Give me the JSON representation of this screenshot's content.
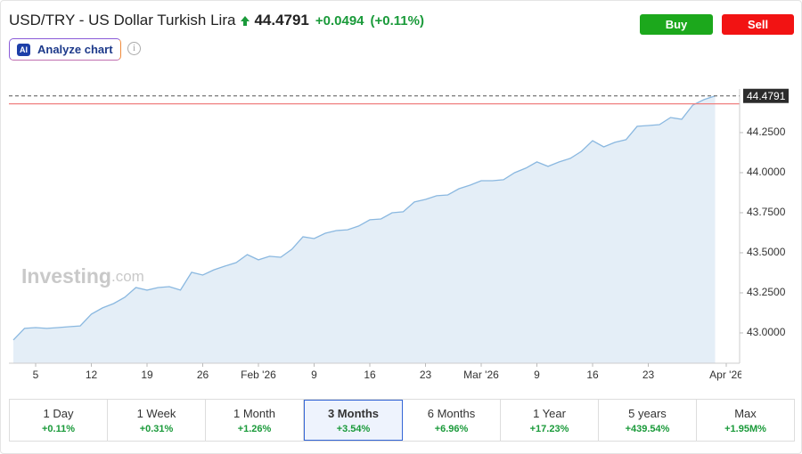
{
  "header": {
    "title": "USD/TRY - US Dollar Turkish Lira",
    "price": "44.4791",
    "change": "+0.0494",
    "change_percent": "(+0.11%)"
  },
  "buttons": {
    "buy": "Buy",
    "sell": "Sell"
  },
  "analyze": {
    "icon": "AI",
    "label": "Analyze chart",
    "info": "i"
  },
  "watermark": {
    "brand": "Investing",
    "suffix": ".com"
  },
  "chart_data": {
    "type": "area",
    "values": [
      42.956,
      43.028,
      43.033,
      43.028,
      43.033,
      43.039,
      43.044,
      43.117,
      43.156,
      43.183,
      43.222,
      43.283,
      43.267,
      43.283,
      43.289,
      43.267,
      43.378,
      43.361,
      43.394,
      43.417,
      43.439,
      43.489,
      43.456,
      43.478,
      43.472,
      43.522,
      43.6,
      43.589,
      43.622,
      43.639,
      43.644,
      43.667,
      43.706,
      43.711,
      43.75,
      43.756,
      43.817,
      43.833,
      43.856,
      43.861,
      43.9,
      43.922,
      43.95,
      43.95,
      43.956,
      44.0,
      44.028,
      44.067,
      44.039,
      44.067,
      44.089,
      44.133,
      44.2,
      44.161,
      44.189,
      44.206,
      44.289,
      44.294,
      44.3,
      44.344,
      44.333,
      44.422,
      44.456,
      44.4791
    ],
    "color": "#8ab8e0",
    "fill": "#e4eef7",
    "reference_line": 44.4297,
    "reference_color": "#f08080",
    "xlim": [
      -0.4,
      65.2
    ],
    "xticks": [
      {
        "value": 2,
        "label": "5"
      },
      {
        "value": 7,
        "label": "12"
      },
      {
        "value": 12,
        "label": "19"
      },
      {
        "value": 17,
        "label": "26"
      },
      {
        "value": 22,
        "label": "Feb '26"
      },
      {
        "value": 27,
        "label": "9"
      },
      {
        "value": 32,
        "label": "16"
      },
      {
        "value": 37,
        "label": "23"
      },
      {
        "value": 42,
        "label": "Mar '26"
      },
      {
        "value": 47,
        "label": "9"
      },
      {
        "value": 52,
        "label": "16"
      },
      {
        "value": 57,
        "label": "23"
      },
      {
        "value": 64,
        "label": "Apr '26"
      }
    ],
    "ylim": [
      42.811,
      44.522
    ],
    "yticks": [
      {
        "value": 43,
        "label": "43.0000"
      },
      {
        "value": 43.25,
        "label": "43.2500"
      },
      {
        "value": 43.5,
        "label": "43.5000"
      },
      {
        "value": 43.75,
        "label": "43.7500"
      },
      {
        "value": 44,
        "label": "44.0000"
      },
      {
        "value": 44.25,
        "label": "44.2500"
      }
    ],
    "grid": false,
    "y_axis_side": "right"
  },
  "periods": [
    {
      "label": "1 Day",
      "change": "+0.11%"
    },
    {
      "label": "1 Week",
      "change": "+0.31%"
    },
    {
      "label": "1 Month",
      "change": "+1.26%"
    },
    {
      "label": "3 Months",
      "change": "+3.54%",
      "selected": true
    },
    {
      "label": "6 Months",
      "change": "+6.96%"
    },
    {
      "label": "1 Year",
      "change": "+17.23%"
    },
    {
      "label": "5 years",
      "change": "+439.54%"
    },
    {
      "label": "Max",
      "change": "+1.95M%"
    }
  ]
}
